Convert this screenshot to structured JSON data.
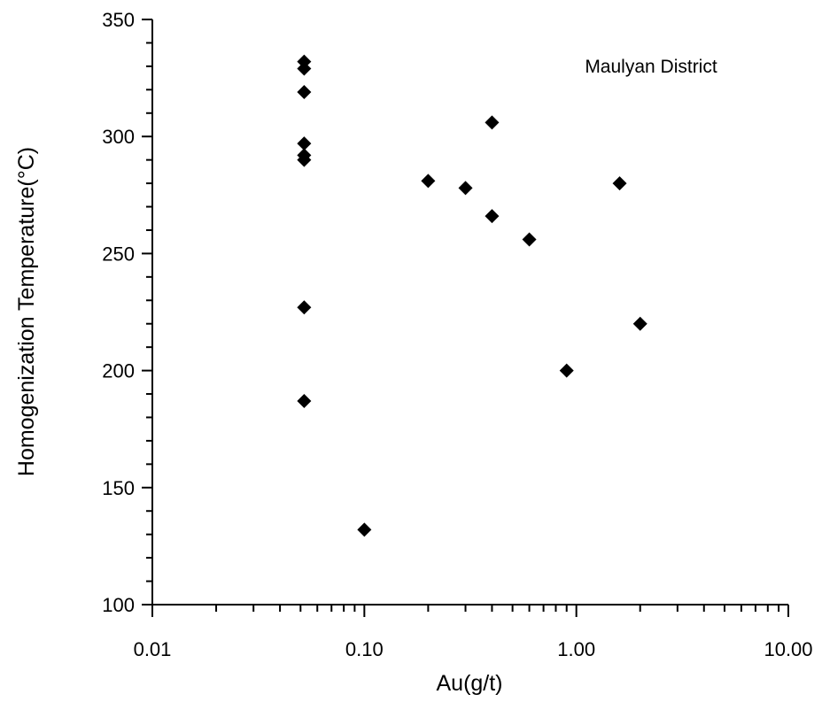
{
  "chart_data": {
    "type": "scatter",
    "annotation": "Maulyan District",
    "xlabel": "Au(g/t)",
    "ylabel": "Homogenization Temperature(°C)",
    "x_scale": "log",
    "xlim": [
      0.01,
      10.0
    ],
    "ylim": [
      100,
      350
    ],
    "x_tick_labels": [
      {
        "value": 0.01,
        "label": "0.01"
      },
      {
        "value": 0.1,
        "label": "0.10"
      },
      {
        "value": 1.0,
        "label": "1.00"
      },
      {
        "value": 10.0,
        "label": "10.00"
      }
    ],
    "y_ticks": [
      100,
      150,
      200,
      250,
      300,
      350
    ],
    "marker": "diamond",
    "marker_color": "#000000",
    "grid": false,
    "points": [
      {
        "x": 0.052,
        "y": 332
      },
      {
        "x": 0.052,
        "y": 329
      },
      {
        "x": 0.052,
        "y": 319
      },
      {
        "x": 0.052,
        "y": 297
      },
      {
        "x": 0.052,
        "y": 292
      },
      {
        "x": 0.052,
        "y": 290
      },
      {
        "x": 0.052,
        "y": 227
      },
      {
        "x": 0.052,
        "y": 187
      },
      {
        "x": 0.1,
        "y": 132
      },
      {
        "x": 0.2,
        "y": 281
      },
      {
        "x": 0.3,
        "y": 278
      },
      {
        "x": 0.4,
        "y": 306
      },
      {
        "x": 0.4,
        "y": 266
      },
      {
        "x": 0.6,
        "y": 256
      },
      {
        "x": 0.9,
        "y": 200
      },
      {
        "x": 1.6,
        "y": 280
      },
      {
        "x": 2.0,
        "y": 220
      }
    ]
  }
}
